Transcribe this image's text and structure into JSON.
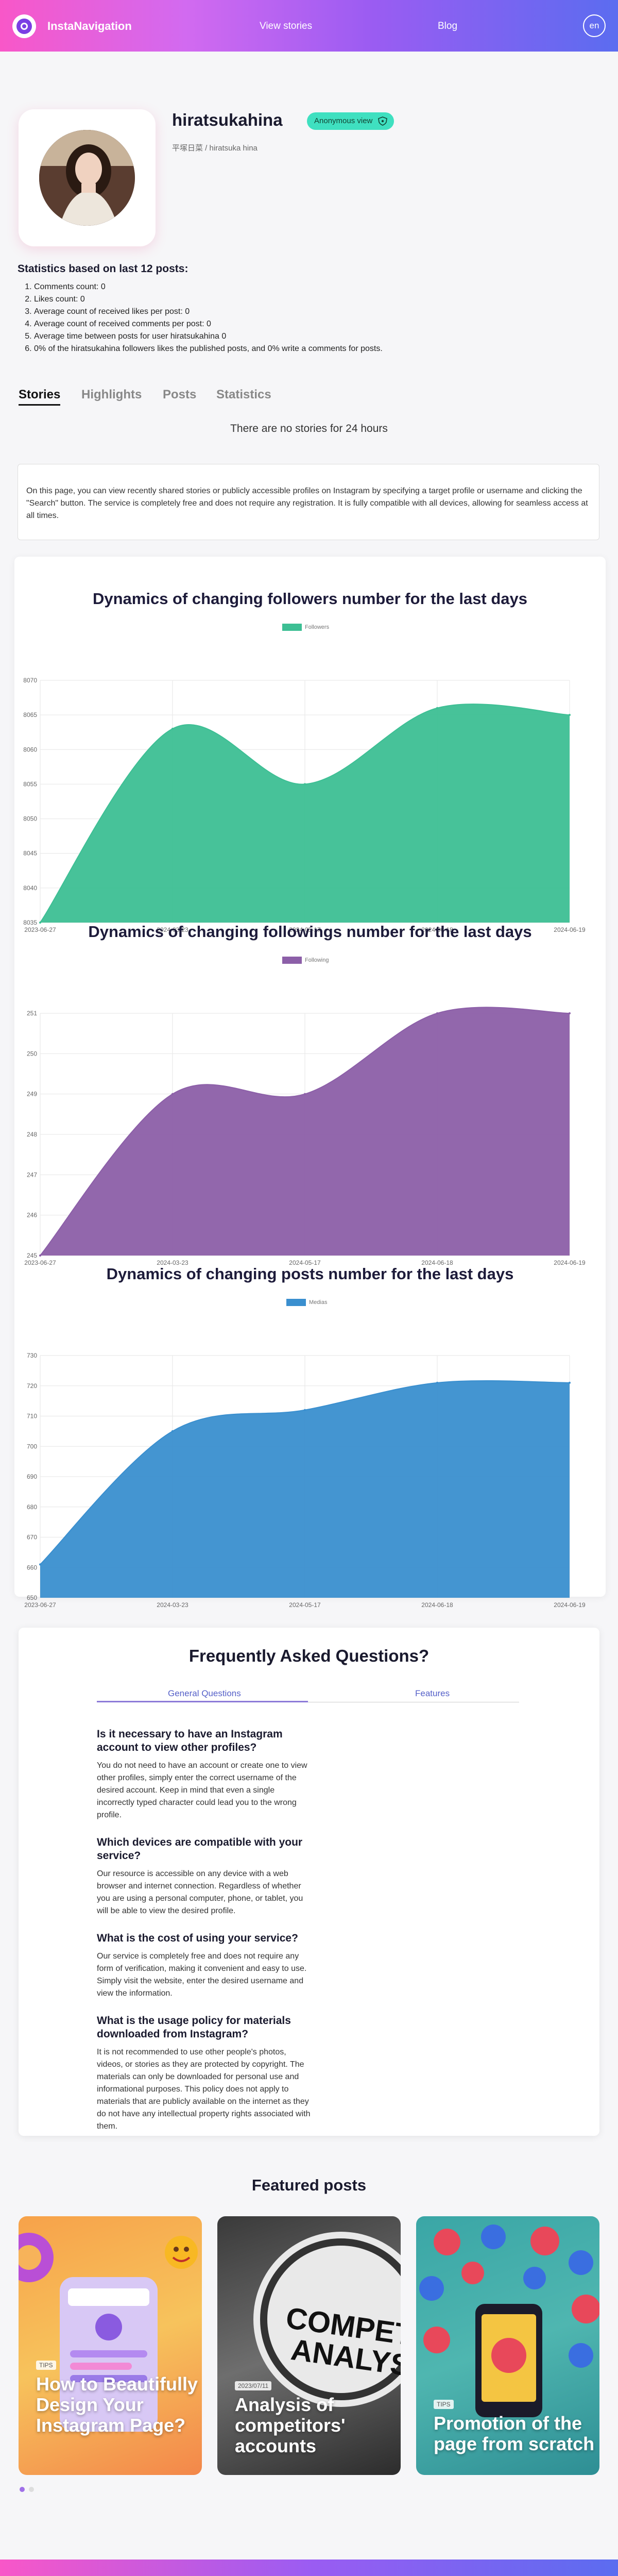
{
  "header": {
    "brand": "InstaNavigation",
    "nav_stories": "View stories",
    "nav_blog": "Blog",
    "lang": "en"
  },
  "profile": {
    "username": "hiratsukahina",
    "badge": "Anonymous view",
    "subname": "平塚日菜 / hiratsuka hina"
  },
  "stats": {
    "title": "Statistics based on last 12 posts:",
    "items": [
      "Comments count: 0",
      "Likes count: 0",
      "Average count of received likes per post: 0",
      "Average count of received comments per post: 0",
      "Average time between posts for user hiratsukahina 0",
      "0% of the hiratsukahina followers likes the published posts, and 0% write a comments for posts."
    ]
  },
  "tabs": [
    "Stories",
    "Highlights",
    "Posts",
    "Statistics"
  ],
  "no_stories": "There are no stories for 24 hours",
  "info": "On this page, you can view recently shared stories or publicly accessible profiles on Instagram by specifying a target profile or username and clicking the \"Search\" button. The service is completely free and does not require any registration. It is fully compatible with all devices, allowing for seamless access at all times.",
  "colors": {
    "followers": "#3dbf94",
    "followings": "#8c5fa8",
    "posts": "#3a8fcf"
  },
  "chart_data": [
    {
      "type": "area",
      "title": "Dynamics of changing followers number for the last days",
      "series": [
        {
          "name": "Followers",
          "values": [
            8035,
            8063,
            8055,
            8066,
            8065
          ]
        }
      ],
      "categories": [
        "2023-06-27",
        "2024-03-23",
        "2024-05-17",
        "2024-06-18",
        "2024-06-19"
      ],
      "yticks": [
        "8035",
        "8040",
        "8045",
        "8050",
        "8055",
        "8060",
        "8065",
        "8070"
      ],
      "ylim": [
        8035,
        8070
      ],
      "grid": true,
      "legend": "top"
    },
    {
      "type": "area",
      "title": "Dynamics of changing followings number for the last days",
      "series": [
        {
          "name": "Following",
          "values": [
            245,
            249,
            249,
            251,
            251
          ]
        }
      ],
      "categories": [
        "2023-06-27",
        "2024-03-23",
        "2024-05-17",
        "2024-06-18",
        "2024-06-19"
      ],
      "yticks": [
        "245",
        "246",
        "247",
        "248",
        "249",
        "250",
        "251"
      ],
      "ylim": [
        245,
        251
      ],
      "grid": true,
      "legend": "top"
    },
    {
      "type": "area",
      "title": "Dynamics of changing posts number for the last days",
      "series": [
        {
          "name": "Medias",
          "values": [
            661,
            705,
            712,
            721,
            721
          ]
        }
      ],
      "categories": [
        "2023-06-27",
        "2024-03-23",
        "2024-05-17",
        "2024-06-18",
        "2024-06-19"
      ],
      "yticks": [
        "650",
        "660",
        "670",
        "680",
        "690",
        "700",
        "710",
        "720",
        "730"
      ],
      "ylim": [
        650,
        730
      ],
      "grid": true,
      "legend": "top"
    }
  ],
  "faq": {
    "title": "Frequently Asked Questions?",
    "tab_general": "General Questions",
    "tab_features": "Features",
    "items": [
      {
        "q": "Is it necessary to have an Instagram account to view other profiles?",
        "a": "You do not need to have an account or create one to view other profiles, simply enter the correct username of the desired account. Keep in mind that even a single incorrectly typed character could lead you to the wrong profile."
      },
      {
        "q": "Which devices are compatible with your service?",
        "a": "Our resource is accessible on any device with a web browser and internet connection. Regardless of whether you are using a personal computer, phone, or tablet, you will be able to view the desired profile."
      },
      {
        "q": "What is the cost of using your service?",
        "a": "Our service is completely free and does not require any form of verification, making it convenient and easy to use. Simply visit the website, enter the desired username and view the information."
      },
      {
        "q": "What is the usage policy for materials downloaded from Instagram?",
        "a": "It is not recommended to use other people's photos, videos, or stories as they are protected by copyright. The materials can only be downloaded for personal use and informational purposes. This policy does not apply to materials that are publicly available on the internet as they do not have any intellectual property rights associated with them."
      }
    ]
  },
  "featured": {
    "title": "Featured posts",
    "cards": [
      {
        "tag": "TIPS",
        "title": "How to Beautifully Design Your Instagram Page?"
      },
      {
        "tag": "2023/07/11",
        "title": "Analysis of competitors' accounts",
        "image_text": "COMPETITO ANALYSIS"
      },
      {
        "tag": "TIPS",
        "title": "Promotion of the page from scratch"
      }
    ]
  }
}
